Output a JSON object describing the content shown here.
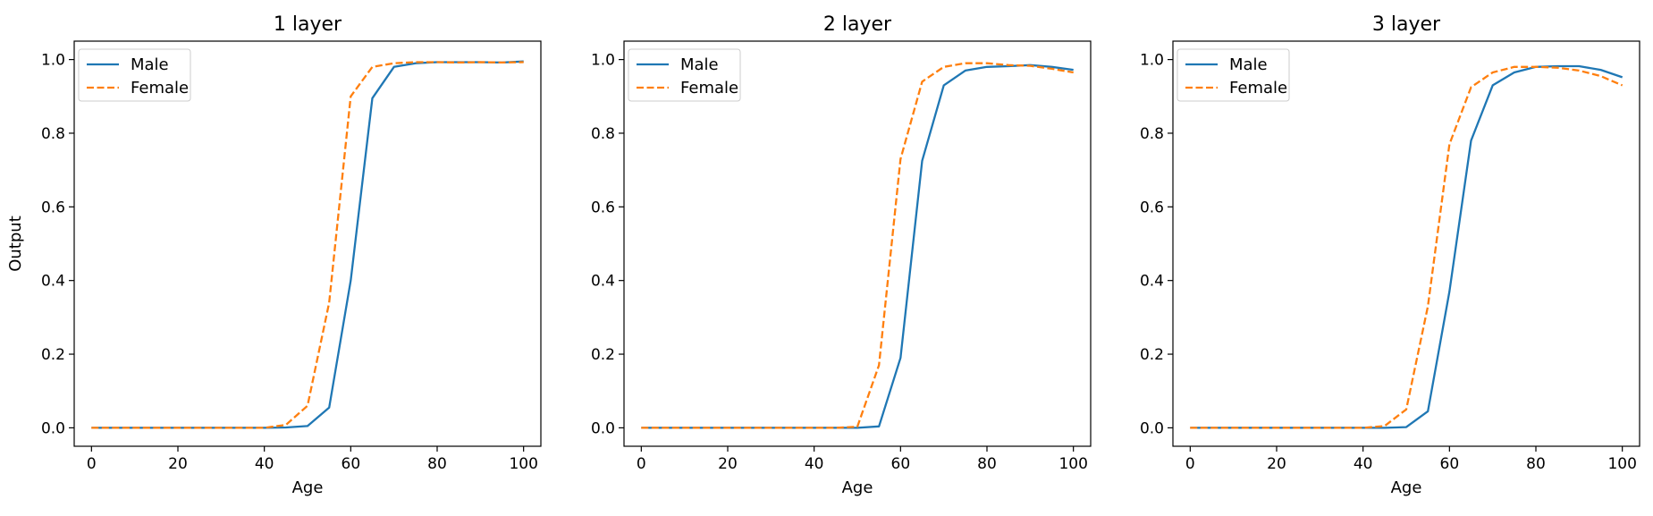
{
  "colors": {
    "male": "#1f77b4",
    "female": "#ff7f0e"
  },
  "chart_data": [
    {
      "type": "line",
      "title": "1 layer",
      "xlabel": "Age",
      "ylabel": "Output",
      "xlim": [
        -4,
        104
      ],
      "ylim": [
        -0.05,
        1.05
      ],
      "xticks": [
        0,
        20,
        40,
        60,
        80,
        100
      ],
      "yticks": [
        0.0,
        0.2,
        0.4,
        0.6,
        0.8,
        1.0
      ],
      "ytick_labels": [
        "0.0",
        "0.2",
        "0.4",
        "0.6",
        "0.8",
        "1.0"
      ],
      "legend": "top-left",
      "x": [
        0,
        5,
        10,
        15,
        20,
        25,
        30,
        35,
        40,
        45,
        50,
        55,
        60,
        65,
        70,
        75,
        80,
        85,
        90,
        95,
        100
      ],
      "series": [
        {
          "name": "Male",
          "style": "solid",
          "values": [
            0,
            0,
            0,
            0,
            0,
            0,
            0,
            0,
            0,
            0.001,
            0.005,
            0.055,
            0.4,
            0.895,
            0.98,
            0.99,
            0.993,
            0.993,
            0.993,
            0.992,
            0.995
          ]
        },
        {
          "name": "Female",
          "style": "dashed",
          "values": [
            0,
            0,
            0,
            0,
            0,
            0,
            0,
            0,
            0,
            0.008,
            0.06,
            0.34,
            0.9,
            0.98,
            0.99,
            0.993,
            0.993,
            0.992,
            0.993,
            0.992,
            0.993
          ]
        }
      ]
    },
    {
      "type": "line",
      "title": "2 layer",
      "xlabel": "Age",
      "ylabel": "",
      "xlim": [
        -4,
        104
      ],
      "ylim": [
        -0.05,
        1.05
      ],
      "xticks": [
        0,
        20,
        40,
        60,
        80,
        100
      ],
      "yticks": [
        0.0,
        0.2,
        0.4,
        0.6,
        0.8,
        1.0
      ],
      "ytick_labels": [
        "0.0",
        "0.2",
        "0.4",
        "0.6",
        "0.8",
        "1.0"
      ],
      "legend": "top-left",
      "x": [
        0,
        5,
        10,
        15,
        20,
        25,
        30,
        35,
        40,
        45,
        50,
        55,
        60,
        65,
        70,
        75,
        80,
        85,
        90,
        95,
        100
      ],
      "series": [
        {
          "name": "Male",
          "style": "solid",
          "values": [
            0,
            0,
            0,
            0,
            0,
            0,
            0,
            0,
            0,
            0,
            0,
            0.004,
            0.19,
            0.725,
            0.93,
            0.97,
            0.98,
            0.982,
            0.985,
            0.98,
            0.972
          ]
        },
        {
          "name": "Female",
          "style": "dashed",
          "values": [
            0,
            0,
            0,
            0,
            0,
            0,
            0,
            0,
            0,
            0,
            0.003,
            0.17,
            0.73,
            0.94,
            0.98,
            0.99,
            0.99,
            0.985,
            0.983,
            0.975,
            0.965
          ]
        }
      ]
    },
    {
      "type": "line",
      "title": "3 layer",
      "xlabel": "Age",
      "ylabel": "",
      "xlim": [
        -4,
        104
      ],
      "ylim": [
        -0.05,
        1.05
      ],
      "xticks": [
        0,
        20,
        40,
        60,
        80,
        100
      ],
      "yticks": [
        0.0,
        0.2,
        0.4,
        0.6,
        0.8,
        1.0
      ],
      "ytick_labels": [
        "0.0",
        "0.2",
        "0.4",
        "0.6",
        "0.8",
        "1.0"
      ],
      "legend": "top-left",
      "x": [
        0,
        5,
        10,
        15,
        20,
        25,
        30,
        35,
        40,
        45,
        50,
        55,
        60,
        65,
        70,
        75,
        80,
        85,
        90,
        95,
        100
      ],
      "series": [
        {
          "name": "Male",
          "style": "solid",
          "values": [
            0,
            0,
            0,
            0,
            0,
            0,
            0,
            0,
            0,
            0,
            0.002,
            0.045,
            0.37,
            0.78,
            0.93,
            0.965,
            0.98,
            0.982,
            0.982,
            0.972,
            0.952
          ]
        },
        {
          "name": "Female",
          "style": "dashed",
          "values": [
            0,
            0,
            0,
            0,
            0,
            0,
            0,
            0,
            0,
            0.005,
            0.05,
            0.33,
            0.77,
            0.925,
            0.965,
            0.98,
            0.98,
            0.978,
            0.97,
            0.955,
            0.93
          ]
        }
      ]
    }
  ]
}
